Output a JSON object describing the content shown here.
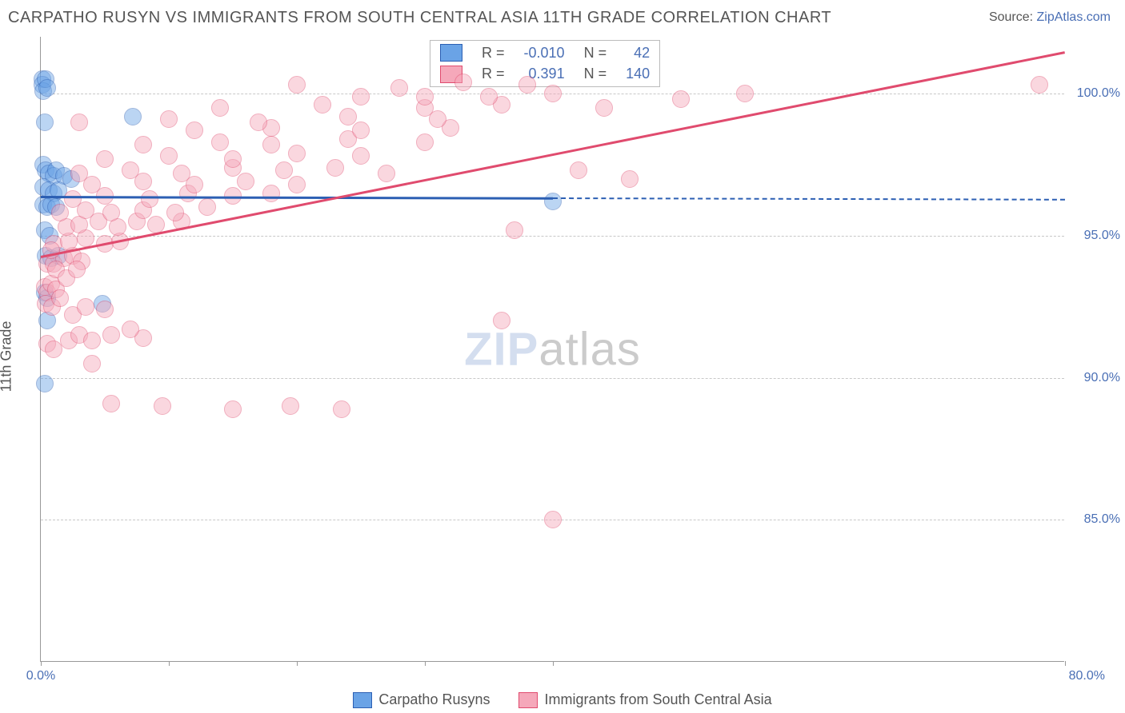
{
  "header": {
    "title": "CARPATHO RUSYN VS IMMIGRANTS FROM SOUTH CENTRAL ASIA 11TH GRADE CORRELATION CHART",
    "source_label": "Source:",
    "source_value": "ZipAtlas.com"
  },
  "ylabel": "11th Grade",
  "watermark": {
    "part1": "ZIP",
    "part2": "atlas"
  },
  "chart": {
    "type": "scatter",
    "background_color": "#ffffff",
    "grid_color": "#c8c8c8",
    "axis_color": "#999999",
    "tick_label_color": "#4a6fb5",
    "xlim": [
      0,
      80
    ],
    "ylim": [
      80,
      102
    ],
    "yticks": [
      85,
      90,
      95,
      100
    ],
    "ytick_labels": [
      "85.0%",
      "90.0%",
      "95.0%",
      "100.0%"
    ],
    "xticks": [
      0,
      10,
      20,
      30,
      40,
      80
    ],
    "xtick_labels": {
      "0": "0.0%",
      "80": "80.0%"
    },
    "marker_radius": 11,
    "marker_opacity": 0.45,
    "marker_border_width": 1.5,
    "series": [
      {
        "name": "Carpatho Rusyns",
        "fill_color": "#6aa3e6",
        "border_color": "#2c5fb3",
        "R": "-0.010",
        "N": "42",
        "trend": {
          "y_at_x0": 96.4,
          "y_at_x80": 96.3,
          "solid_until_x": 40,
          "line_width": 3
        },
        "points": [
          [
            0.1,
            100.5
          ],
          [
            0.1,
            100.3
          ],
          [
            0.2,
            100.1
          ],
          [
            0.4,
            100.5
          ],
          [
            0.5,
            100.2
          ],
          [
            0.3,
            99.0
          ],
          [
            7.2,
            99.2
          ],
          [
            0.2,
            97.5
          ],
          [
            0.4,
            97.3
          ],
          [
            0.6,
            97.2
          ],
          [
            1.0,
            97.1
          ],
          [
            1.2,
            97.3
          ],
          [
            1.8,
            97.1
          ],
          [
            2.4,
            97.0
          ],
          [
            0.2,
            96.7
          ],
          [
            0.6,
            96.6
          ],
          [
            1.0,
            96.5
          ],
          [
            1.4,
            96.6
          ],
          [
            0.2,
            96.1
          ],
          [
            0.5,
            96.0
          ],
          [
            0.8,
            96.1
          ],
          [
            1.2,
            96.0
          ],
          [
            0.3,
            95.2
          ],
          [
            0.7,
            95.0
          ],
          [
            0.4,
            94.3
          ],
          [
            0.8,
            94.2
          ],
          [
            1.4,
            94.3
          ],
          [
            0.3,
            93.0
          ],
          [
            0.5,
            92.8
          ],
          [
            4.8,
            92.6
          ],
          [
            0.5,
            92.0
          ],
          [
            0.3,
            89.8
          ],
          [
            40.0,
            96.2
          ]
        ]
      },
      {
        "name": "Immigrants from South Central Asia",
        "fill_color": "#f5a8ba",
        "border_color": "#e04b6e",
        "R": "0.391",
        "N": "140",
        "trend": {
          "y_at_x0": 94.3,
          "y_at_x80": 101.5,
          "solid_until_x": 80,
          "line_width": 3
        },
        "points": [
          [
            0.3,
            93.2
          ],
          [
            0.5,
            93.0
          ],
          [
            0.8,
            93.3
          ],
          [
            1.2,
            93.1
          ],
          [
            0.4,
            92.6
          ],
          [
            0.9,
            92.5
          ],
          [
            0.5,
            94.0
          ],
          [
            1.0,
            94.0
          ],
          [
            1.8,
            94.2
          ],
          [
            2.5,
            94.3
          ],
          [
            3.2,
            94.1
          ],
          [
            1.0,
            94.7
          ],
          [
            2.2,
            94.8
          ],
          [
            3.5,
            94.9
          ],
          [
            5.0,
            94.7
          ],
          [
            6.2,
            94.8
          ],
          [
            2.0,
            95.3
          ],
          [
            3.0,
            95.4
          ],
          [
            4.5,
            95.5
          ],
          [
            6.0,
            95.3
          ],
          [
            7.5,
            95.5
          ],
          [
            9.0,
            95.4
          ],
          [
            11.0,
            95.5
          ],
          [
            1.5,
            95.8
          ],
          [
            3.5,
            95.9
          ],
          [
            5.5,
            95.8
          ],
          [
            8.0,
            95.9
          ],
          [
            10.5,
            95.8
          ],
          [
            13.0,
            96.0
          ],
          [
            2.5,
            96.3
          ],
          [
            5.0,
            96.4
          ],
          [
            8.5,
            96.3
          ],
          [
            11.5,
            96.5
          ],
          [
            15.0,
            96.4
          ],
          [
            18.0,
            96.5
          ],
          [
            4.0,
            96.8
          ],
          [
            8.0,
            96.9
          ],
          [
            12.0,
            96.8
          ],
          [
            16.0,
            96.9
          ],
          [
            20.0,
            96.8
          ],
          [
            3.0,
            97.2
          ],
          [
            7.0,
            97.3
          ],
          [
            11.0,
            97.2
          ],
          [
            15.0,
            97.4
          ],
          [
            19.0,
            97.3
          ],
          [
            23.0,
            97.4
          ],
          [
            27.0,
            97.2
          ],
          [
            5.0,
            97.7
          ],
          [
            10.0,
            97.8
          ],
          [
            15.0,
            97.7
          ],
          [
            20.0,
            97.9
          ],
          [
            25.0,
            97.8
          ],
          [
            8.0,
            98.2
          ],
          [
            14.0,
            98.3
          ],
          [
            18.0,
            98.2
          ],
          [
            24.0,
            98.4
          ],
          [
            30.0,
            98.3
          ],
          [
            12.0,
            98.7
          ],
          [
            18.0,
            98.8
          ],
          [
            25.0,
            98.7
          ],
          [
            32.0,
            98.8
          ],
          [
            3.0,
            99.0
          ],
          [
            10.0,
            99.1
          ],
          [
            17.0,
            99.0
          ],
          [
            24.0,
            99.2
          ],
          [
            31.0,
            99.1
          ],
          [
            14.0,
            99.5
          ],
          [
            22.0,
            99.6
          ],
          [
            30.0,
            99.5
          ],
          [
            36.0,
            99.6
          ],
          [
            20.0,
            100.3
          ],
          [
            28.0,
            100.2
          ],
          [
            33.0,
            100.4
          ],
          [
            38.0,
            100.3
          ],
          [
            25.0,
            99.9
          ],
          [
            30.0,
            99.9
          ],
          [
            35.0,
            99.9
          ],
          [
            40.0,
            100.0
          ],
          [
            44.0,
            99.5
          ],
          [
            50.0,
            99.8
          ],
          [
            55.0,
            100.0
          ],
          [
            78.0,
            100.3
          ],
          [
            0.8,
            94.5
          ],
          [
            1.2,
            93.8
          ],
          [
            2.0,
            93.5
          ],
          [
            2.8,
            93.8
          ],
          [
            1.5,
            92.8
          ],
          [
            2.5,
            92.2
          ],
          [
            3.5,
            92.5
          ],
          [
            5.0,
            92.4
          ],
          [
            2.2,
            91.3
          ],
          [
            3.0,
            91.5
          ],
          [
            4.0,
            91.3
          ],
          [
            5.5,
            91.5
          ],
          [
            8.0,
            91.4
          ],
          [
            4.0,
            90.5
          ],
          [
            7.0,
            91.7
          ],
          [
            0.5,
            91.2
          ],
          [
            1.0,
            91.0
          ],
          [
            5.5,
            89.1
          ],
          [
            9.5,
            89.0
          ],
          [
            15.0,
            88.9
          ],
          [
            19.5,
            89.0
          ],
          [
            23.5,
            88.9
          ],
          [
            36.0,
            92.0
          ],
          [
            37.0,
            95.2
          ],
          [
            42.0,
            97.3
          ],
          [
            46.0,
            97.0
          ],
          [
            40.0,
            85.0
          ]
        ]
      }
    ]
  },
  "stat_legend": {
    "R_label": "R =",
    "N_label": "N ="
  },
  "bottom_legend": [
    {
      "label": "Carpatho Rusyns",
      "fill": "#6aa3e6",
      "border": "#2c5fb3"
    },
    {
      "label": "Immigrants from South Central Asia",
      "fill": "#f5a8ba",
      "border": "#e04b6e"
    }
  ]
}
